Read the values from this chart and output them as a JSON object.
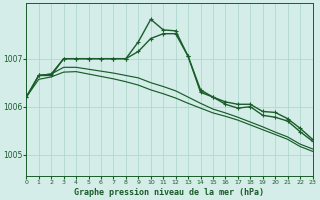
{
  "title": "Graphe pression niveau de la mer (hPa)",
  "background_color": "#d4ede8",
  "grid_color": "#b0d8d0",
  "line_color": "#1a5c2a",
  "ylim": [
    1004.55,
    1008.15
  ],
  "yticks": [
    1005,
    1006,
    1007
  ],
  "xlim": [
    0,
    23
  ],
  "xticks": [
    0,
    1,
    2,
    3,
    4,
    5,
    6,
    7,
    8,
    9,
    10,
    11,
    12,
    13,
    14,
    15,
    16,
    17,
    18,
    19,
    20,
    21,
    22,
    23
  ],
  "series": [
    {
      "y": [
        1006.2,
        1006.65,
        1006.68,
        1007.0,
        1007.0,
        1007.0,
        1007.0,
        1007.0,
        1007.0,
        1007.35,
        1007.82,
        1007.6,
        1007.58,
        1007.05,
        1006.35,
        1006.2,
        1006.1,
        1006.05,
        1006.05,
        1005.9,
        1005.88,
        1005.75,
        1005.55,
        1005.32
      ],
      "marker": true,
      "lw": 1.0
    },
    {
      "y": [
        1006.2,
        1006.65,
        1006.65,
        1007.0,
        1007.0,
        1007.0,
        1007.0,
        1007.0,
        1007.0,
        1007.15,
        1007.42,
        1007.52,
        1007.52,
        1007.05,
        1006.3,
        1006.2,
        1006.05,
        1005.97,
        1006.0,
        1005.82,
        1005.78,
        1005.7,
        1005.48,
        1005.28
      ],
      "marker": true,
      "lw": 1.0
    },
    {
      "y": [
        1006.2,
        1006.65,
        1006.68,
        1006.82,
        1006.82,
        1006.78,
        1006.74,
        1006.7,
        1006.65,
        1006.6,
        1006.5,
        1006.42,
        1006.33,
        1006.2,
        1006.07,
        1005.95,
        1005.87,
        1005.78,
        1005.68,
        1005.58,
        1005.47,
        1005.37,
        1005.22,
        1005.12
      ],
      "marker": false,
      "lw": 0.85
    },
    {
      "y": [
        1006.2,
        1006.57,
        1006.62,
        1006.72,
        1006.73,
        1006.68,
        1006.63,
        1006.58,
        1006.52,
        1006.45,
        1006.35,
        1006.27,
        1006.18,
        1006.07,
        1005.97,
        1005.87,
        1005.8,
        1005.72,
        1005.62,
        1005.52,
        1005.42,
        1005.32,
        1005.17,
        1005.07
      ],
      "marker": false,
      "lw": 0.85
    }
  ]
}
